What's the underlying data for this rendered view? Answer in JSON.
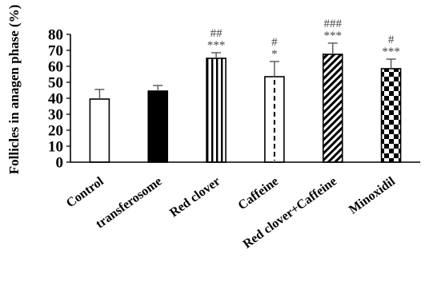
{
  "chart_data": {
    "type": "bar",
    "title": "",
    "xlabel": "",
    "ylabel": "Follicles in anagen phase (%)",
    "ylim": [
      0,
      80
    ],
    "yticks": [
      0,
      10,
      20,
      30,
      40,
      50,
      60,
      70,
      80
    ],
    "grid": false,
    "categories": [
      "Control",
      "transferosome",
      "Red clover",
      "Caffeine",
      "Red clover+Caffeine",
      "Minoxidil"
    ],
    "values": [
      39.5,
      44.5,
      65,
      53.5,
      67.5,
      58.5
    ],
    "errors": [
      6,
      3.5,
      3.5,
      9.5,
      7,
      6
    ],
    "fills": [
      "white",
      "black",
      "vertical-stripes",
      "dashed-line",
      "diagonal-stripes",
      "checkerboard"
    ],
    "annotations": [
      {
        "category": "Red clover",
        "hash": "##",
        "stars": "***"
      },
      {
        "category": "Caffeine",
        "hash": "#",
        "stars": "*"
      },
      {
        "category": "Red clover+Caffeine",
        "hash": "###",
        "stars": "***"
      },
      {
        "category": "Minoxidil",
        "hash": "#",
        "stars": "***"
      }
    ]
  }
}
